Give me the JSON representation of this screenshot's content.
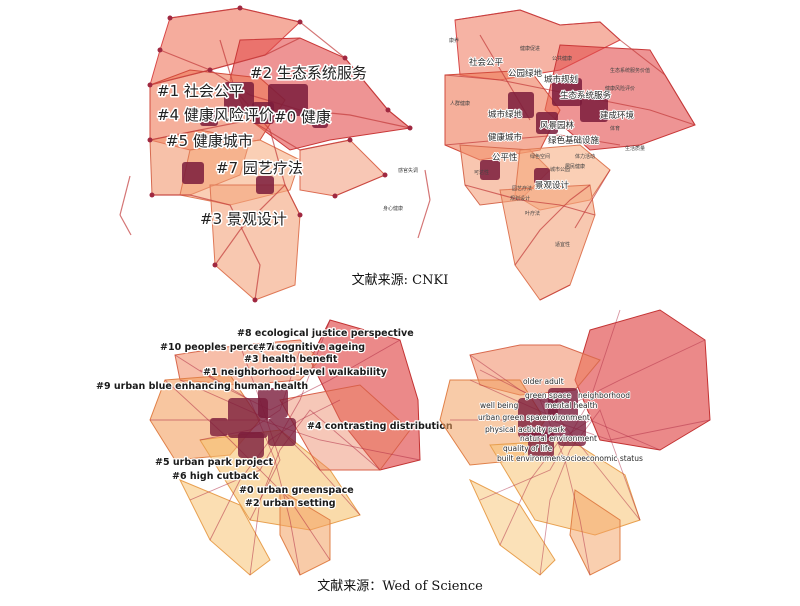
{
  "cnki": {
    "caption": "文献来源: CNKI",
    "cluster_labels": [
      "#2 生态系统服务",
      "#1 社会公平",
      "#4 健康风险评价",
      "#0 健康",
      "#5 健康城市",
      "#7 园艺疗法",
      "#3 景观设计"
    ],
    "side_labels": [
      "感官失调",
      "身心健康"
    ],
    "keywords": [
      "社会公平",
      "公园绿地",
      "城市规划",
      "生态系统服务",
      "城市绿地",
      "风景园林",
      "建成环境",
      "人群健康",
      "健康城市",
      "绿色基础设施",
      "公平性",
      "绿色空间",
      "体力活动",
      "城市公园",
      "景观设计",
      "园艺疗法"
    ],
    "small_labels": [
      "康养",
      "健康促进",
      "公共健康",
      "生态系统服务价值",
      "规划设计",
      "可达性",
      "居民健康",
      "体育",
      "生活质量",
      "健康风险评价",
      "叶疗法",
      "适宜性"
    ]
  },
  "wos": {
    "caption": "文献来源：Wed of Science",
    "cluster_labels": [
      "#8 ecological justice perspective",
      "#10 peoples perception",
      "#7 cognitive ageing",
      "#3 health benefit",
      "#1 neighborhood-level walkability",
      "#9 urban blue enhancing human health",
      "#4 contrasting distribution",
      "#5 urban park project",
      "#6 high cutback",
      "#0 urban greenspace",
      "#2 urban setting"
    ],
    "keywords": [
      "older adult",
      "neighborhood",
      "well being",
      "mental health",
      "green space",
      "urban green space",
      "environment",
      "physical activity",
      "park",
      "natural environment",
      "quality of life",
      "built environment",
      "socioeconomic status"
    ]
  },
  "colors": {
    "red": "#de3b3b",
    "salmon": "#ec8262",
    "orange": "#f3a060",
    "yellow": "#f7c372",
    "maroon": "#7a1b3b",
    "plum": "#9a2a4a"
  }
}
